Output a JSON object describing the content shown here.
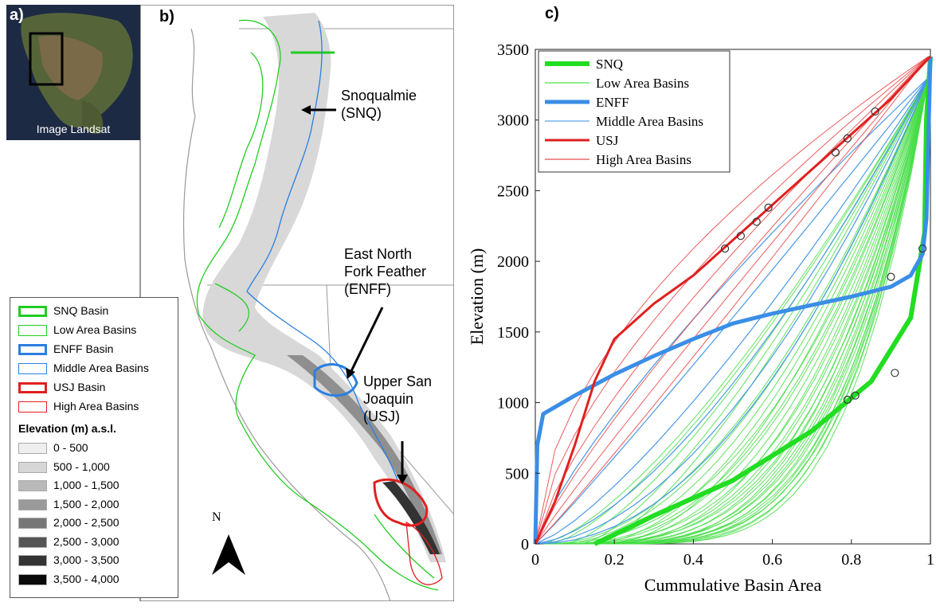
{
  "panel_a": {
    "label": "a)",
    "caption": "Image Landsat",
    "colors": {
      "ocean": "#1d2a44",
      "land": "#5b6b3a",
      "box": "#000000"
    }
  },
  "panel_b": {
    "label": "b)",
    "labels": {
      "snq": "Snoqualmie\n(SNQ)",
      "enff": "East North\nFork Feather\n(ENFF)",
      "usj": "Upper San\nJoaquin\n(USJ)"
    },
    "north": "N",
    "legend": {
      "items": [
        {
          "label": "SNQ Basin",
          "color": "#22cc22",
          "width": 3
        },
        {
          "label": "Low Area Basins",
          "color": "#22cc22",
          "width": 1
        },
        {
          "label": "ENFF Basin",
          "color": "#2a7fe0",
          "width": 3
        },
        {
          "label": "Middle Area Basins",
          "color": "#2a7fe0",
          "width": 1
        },
        {
          "label": "USJ Basin",
          "color": "#e02020",
          "width": 3
        },
        {
          "label": "High Area Basins",
          "color": "#e02020",
          "width": 1
        }
      ],
      "elevation_title": "Elevation (m) a.s.l.",
      "elevation_classes": [
        {
          "label": "0 - 500",
          "color": "#efefef"
        },
        {
          "label": "500 - 1,000",
          "color": "#d6d6d6"
        },
        {
          "label": "1,000 - 1,500",
          "color": "#b9b9b9"
        },
        {
          "label": "1,500 - 2,000",
          "color": "#9a9a9a"
        },
        {
          "label": "2,000 - 2,500",
          "color": "#777777"
        },
        {
          "label": "2,500 - 3,000",
          "color": "#555555"
        },
        {
          "label": "3,000 - 3,500",
          "color": "#333333"
        },
        {
          "label": "3,500 - 4,000",
          "color": "#0a0a0a"
        }
      ]
    }
  },
  "chart_data": {
    "panel_label": "c)",
    "type": "line",
    "xlabel": "Cummulative Basin Area",
    "ylabel": "Elevation (m)",
    "xlim": [
      0,
      1
    ],
    "ylim": [
      0,
      3500
    ],
    "xticks": [
      0,
      0.2,
      0.4,
      0.6,
      0.8,
      1
    ],
    "xtick_labels": [
      "0",
      "0.2",
      "0.4",
      "0.6",
      "0.8",
      "1"
    ],
    "yticks": [
      0,
      500,
      1000,
      1500,
      2000,
      2500,
      3000,
      3500
    ],
    "grid": false,
    "legend_position": "top-left",
    "legend": [
      {
        "label": "SNQ",
        "color": "#22dd22",
        "width": 6
      },
      {
        "label": "Low Area Basins",
        "color": "#22dd22",
        "width": 1
      },
      {
        "label": "ENFF",
        "color": "#3a8ee6",
        "width": 5
      },
      {
        "label": "Middle Area Basins",
        "color": "#3a8ee6",
        "width": 1
      },
      {
        "label": "USJ",
        "color": "#e02020",
        "width": 3
      },
      {
        "label": "High Area Basins",
        "color": "#e02020",
        "width": 1
      }
    ],
    "series": [
      {
        "name": "SNQ",
        "color": "#22dd22",
        "width": 6,
        "x": [
          0.15,
          0.3,
          0.5,
          0.7,
          0.85,
          0.95,
          0.985,
          0.99,
          1.0
        ],
        "y": [
          0,
          200,
          450,
          800,
          1150,
          1600,
          2200,
          3000,
          3450
        ]
      },
      {
        "name": "ENFF",
        "color": "#3a8ee6",
        "width": 5,
        "x": [
          0,
          0.005,
          0.02,
          0.1,
          0.2,
          0.3,
          0.4,
          0.5,
          0.6,
          0.7,
          0.8,
          0.9,
          0.95,
          0.98,
          0.99,
          1.0
        ],
        "y": [
          0,
          700,
          920,
          1050,
          1200,
          1330,
          1450,
          1560,
          1630,
          1690,
          1750,
          1820,
          1900,
          2050,
          2300,
          3450
        ]
      },
      {
        "name": "USJ",
        "color": "#e02020",
        "width": 3,
        "x": [
          0,
          0.05,
          0.1,
          0.15,
          0.2,
          0.3,
          0.4,
          0.5,
          0.6,
          0.7,
          0.8,
          0.9,
          1.0
        ],
        "y": [
          0,
          300,
          700,
          1150,
          1450,
          1700,
          1900,
          2150,
          2400,
          2650,
          2900,
          3150,
          3450
        ]
      }
    ],
    "markers": [
      {
        "x": 0.48,
        "y": 2090
      },
      {
        "x": 0.52,
        "y": 2180
      },
      {
        "x": 0.56,
        "y": 2280
      },
      {
        "x": 0.59,
        "y": 2380
      },
      {
        "x": 0.76,
        "y": 2770
      },
      {
        "x": 0.79,
        "y": 2870
      },
      {
        "x": 0.86,
        "y": 3060
      },
      {
        "x": 0.9,
        "y": 1890
      },
      {
        "x": 0.98,
        "y": 2090
      },
      {
        "x": 0.79,
        "y": 1020
      },
      {
        "x": 0.81,
        "y": 1050
      },
      {
        "x": 0.91,
        "y": 1210
      }
    ]
  }
}
